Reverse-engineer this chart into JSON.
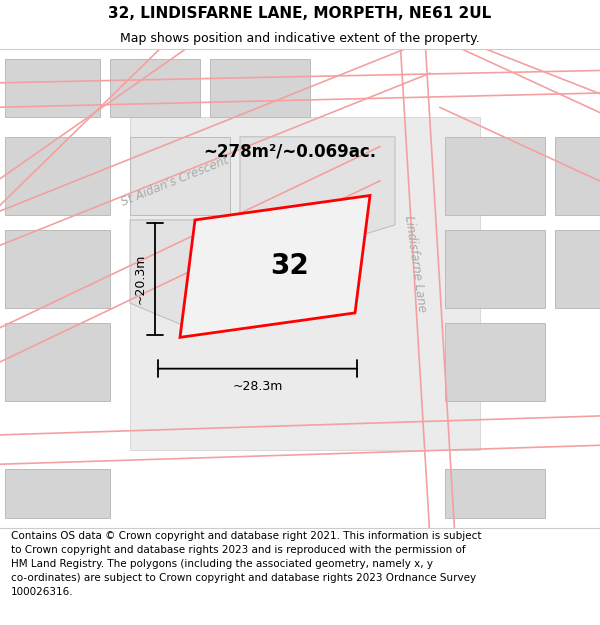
{
  "title": "32, LINDISFARNE LANE, MORPETH, NE61 2UL",
  "subtitle": "Map shows position and indicative extent of the property.",
  "footer": "Contains OS data © Crown copyright and database right 2021. This information is subject to Crown copyright and database rights 2023 and is reproduced with the permission of HM Land Registry. The polygons (including the associated geometry, namely x, y co-ordinates) are subject to Crown copyright and database rights 2023 Ordnance Survey 100026316.",
  "red_plot_color": "#ff0000",
  "area_text": "~278m²/~0.069ac.",
  "number_text": "32",
  "width_text": "~28.3m",
  "height_text": "~20.3m",
  "street1_text": "St Aidan's Crescent",
  "street2_text": "Lindisfarne Lane",
  "title_fontsize": 11,
  "subtitle_fontsize": 9,
  "footer_fontsize": 7.5,
  "map_bg": "#f0f0f0",
  "block_color": "#d4d4d4",
  "block_edge": "#bbbbbb",
  "road_fill": "#fadadb",
  "road_edge": "#f08080",
  "center_block_color": "#e2e2e2",
  "white": "#ffffff"
}
